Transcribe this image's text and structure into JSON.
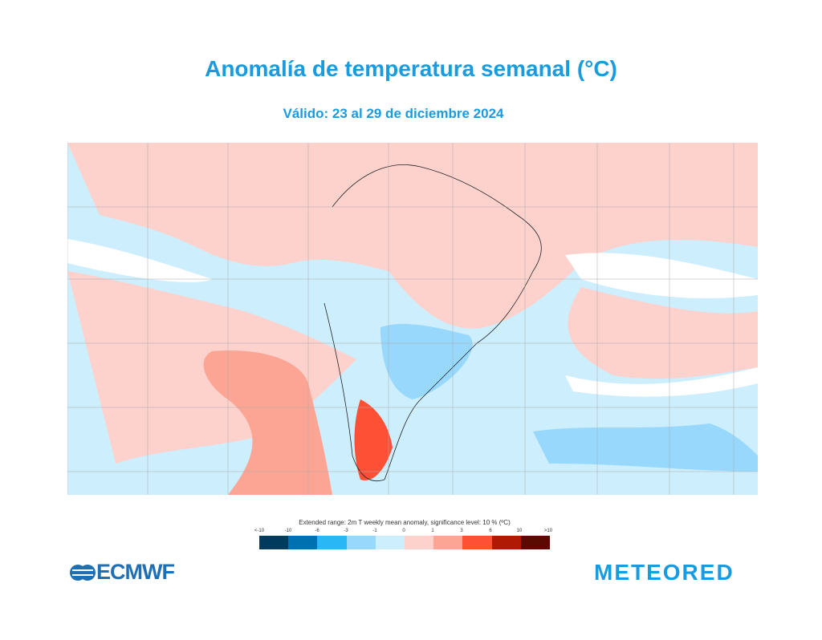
{
  "title": "Anomalía de temperatura semanal  (°C)",
  "subtitle": "Válido: 23 al 29 de diciembre 2024",
  "legend": {
    "title": "Extended range: 2m T weekly mean anomaly, significance level: 10 % (ºC)",
    "ticks": [
      "<-10",
      "-10",
      "-6",
      "-3",
      "-1",
      "0",
      "1",
      "3",
      "6",
      "10",
      ">10"
    ],
    "colors": [
      "#003a5c",
      "#0071b0",
      "#2ab7f6",
      "#98d8fc",
      "#cdeefd",
      "#fdd2cd",
      "#fca595",
      "#fd5035",
      "#b01904",
      "#5a0a00"
    ]
  },
  "logos": {
    "ecmwf": "ECMWF",
    "meteored": "METEORED"
  }
}
